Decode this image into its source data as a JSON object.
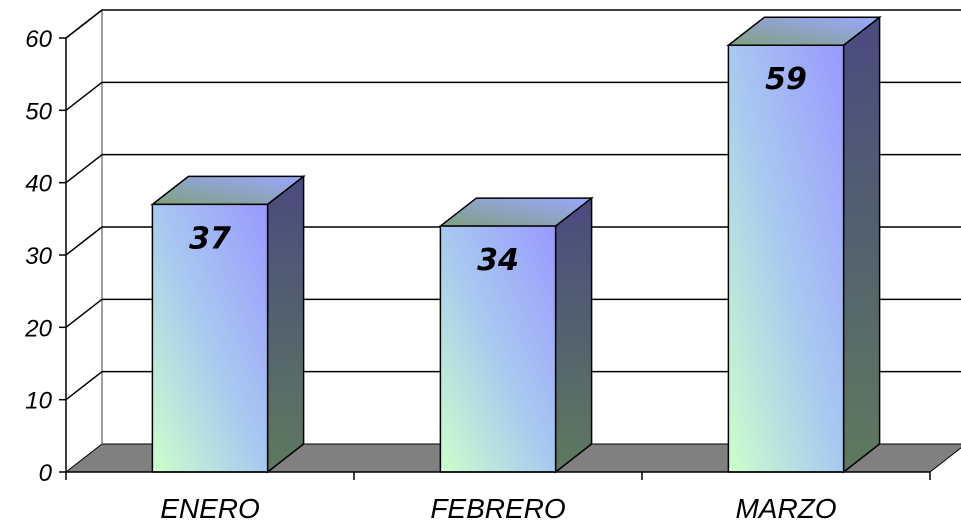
{
  "chart_data": {
    "type": "bar",
    "categories": [
      "ENERO",
      "FEBRERO",
      "MARZO"
    ],
    "values": [
      37,
      34,
      59
    ],
    "data_labels": [
      "37",
      "34",
      "59"
    ],
    "ylim": [
      0,
      60
    ],
    "y_ticks": [
      "0",
      "10",
      "20",
      "30",
      "40",
      "50",
      "60"
    ],
    "grid": true,
    "legend": "none",
    "style": "3d-column",
    "colors": {
      "bar_light": "#ccffcc",
      "bar_mid": "#9999ff",
      "side": "#5a6a6a",
      "floor": "#808080",
      "grid": "#000000"
    }
  }
}
